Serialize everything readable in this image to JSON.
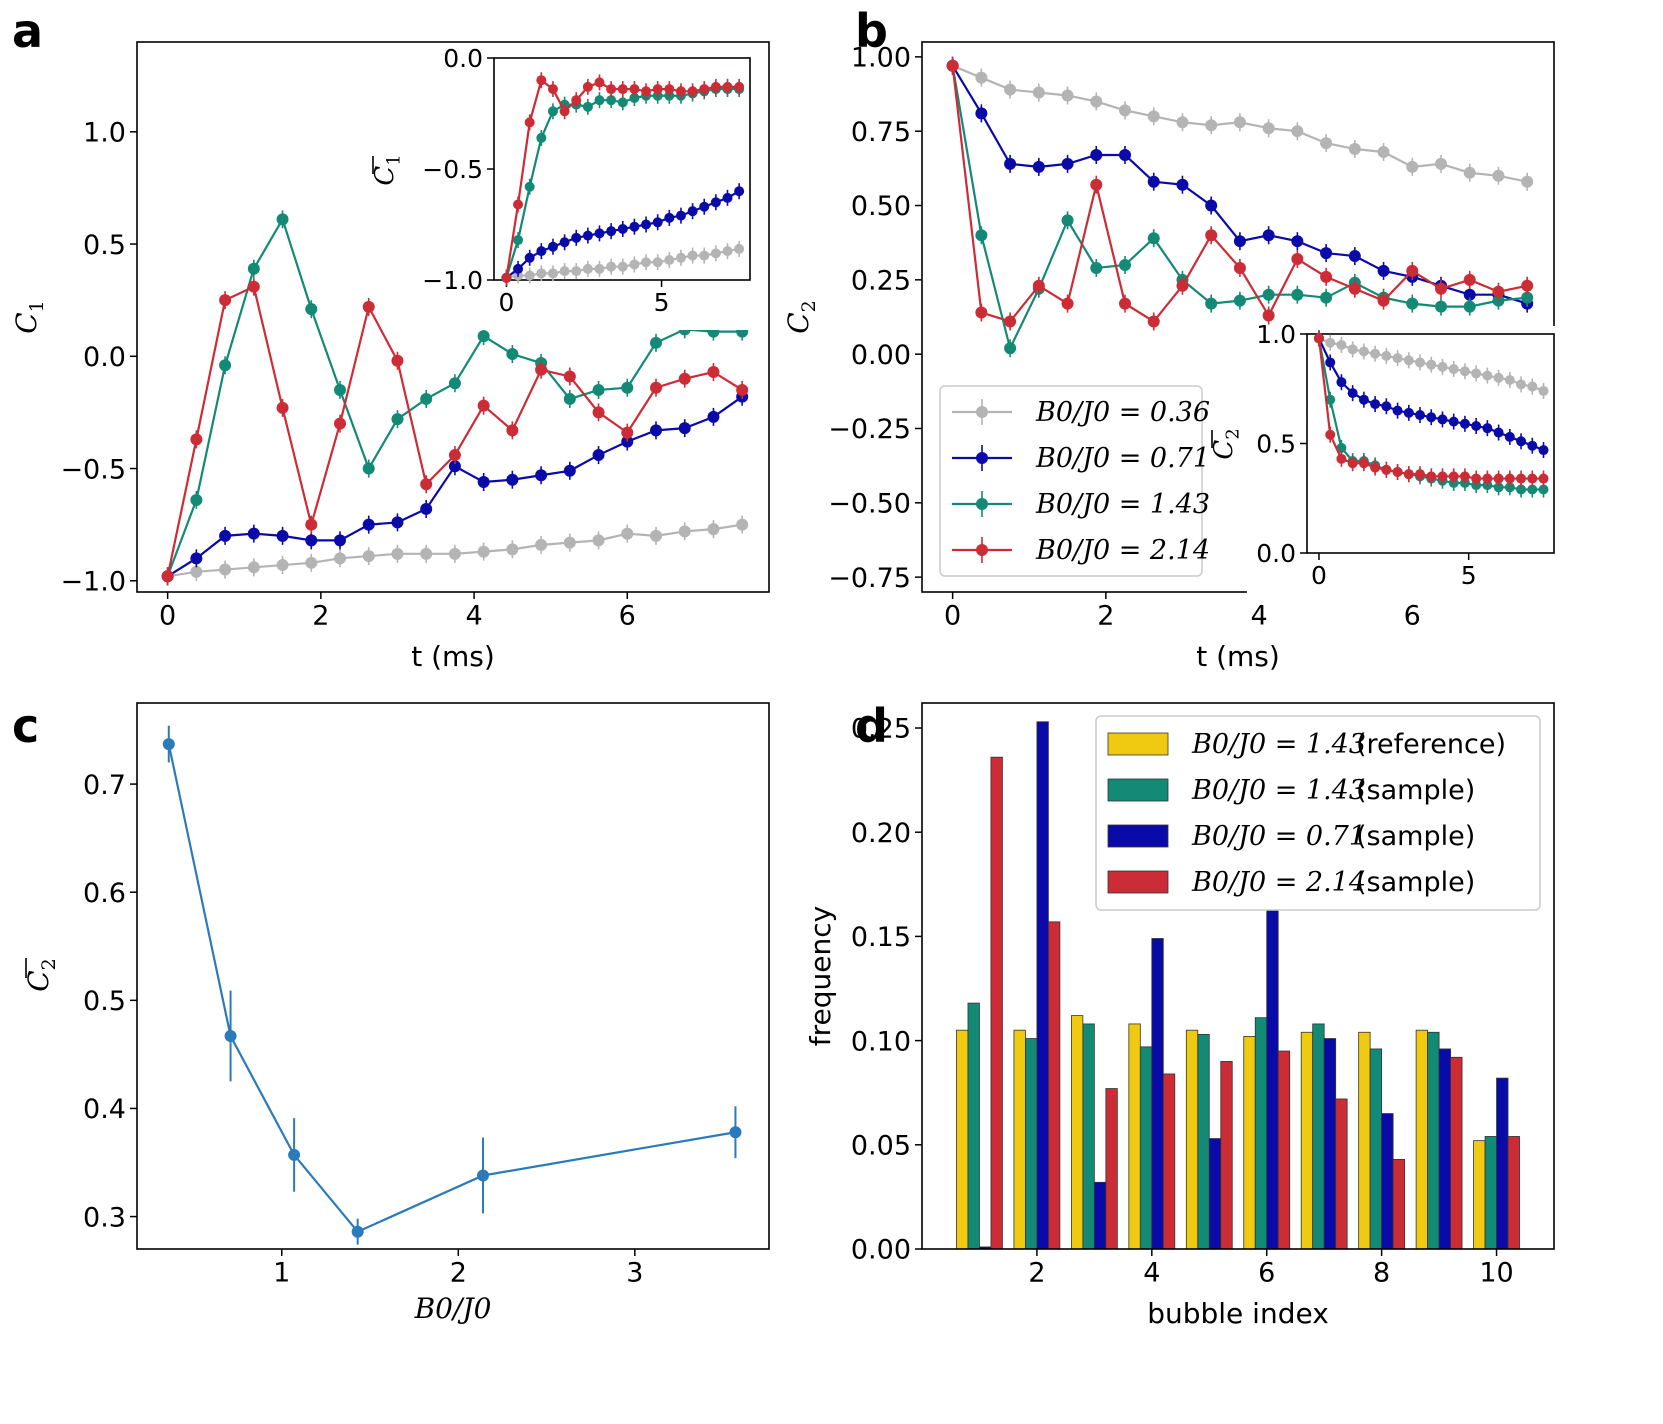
{
  "colors": {
    "gray": "#b4b4b4",
    "blue": "#0a0aa8",
    "teal": "#138a76",
    "red": "#cc2c36",
    "yellow": "#f0ca10",
    "steelblue": "#2b7bba"
  },
  "chart_data": [
    {
      "panel": "a",
      "type": "line",
      "title": "",
      "xlabel": "t (ms)",
      "ylabel": "C1",
      "xlim": [
        -0.4,
        7.85
      ],
      "ylim": [
        -1.05,
        1.4
      ],
      "xticks": [
        0,
        2,
        4,
        6
      ],
      "yticks": [
        -1.0,
        -0.5,
        0.0,
        0.5,
        1.0
      ],
      "xticklabels": [
        "0",
        "2",
        "4",
        "6"
      ],
      "yticklabels": [
        "−1.0",
        "−0.5",
        "0.0",
        "0.5",
        "1.0"
      ],
      "x": [
        0,
        0.375,
        0.75,
        1.125,
        1.5,
        1.875,
        2.25,
        2.625,
        3.0,
        3.375,
        3.75,
        4.125,
        4.5,
        4.875,
        5.25,
        5.625,
        6.0,
        6.375,
        6.75,
        7.125,
        7.5
      ],
      "series": [
        {
          "name": "B0/J0=0.36",
          "color": "gray",
          "values": [
            -0.98,
            -0.96,
            -0.95,
            -0.94,
            -0.93,
            -0.92,
            -0.9,
            -0.89,
            -0.88,
            -0.88,
            -0.88,
            -0.87,
            -0.86,
            -0.84,
            -0.83,
            -0.82,
            -0.79,
            -0.8,
            -0.78,
            -0.77,
            -0.75
          ]
        },
        {
          "name": "B0/J0=0.71",
          "color": "blue",
          "values": [
            -0.98,
            -0.9,
            -0.8,
            -0.79,
            -0.8,
            -0.82,
            -0.82,
            -0.75,
            -0.74,
            -0.68,
            -0.49,
            -0.56,
            -0.55,
            -0.53,
            -0.51,
            -0.44,
            -0.38,
            -0.33,
            -0.32,
            -0.27,
            -0.18
          ]
        },
        {
          "name": "B0/J0=1.43",
          "color": "teal",
          "values": [
            -0.98,
            -0.64,
            -0.04,
            0.39,
            0.61,
            0.21,
            -0.15,
            -0.5,
            -0.28,
            -0.19,
            -0.12,
            0.09,
            0.01,
            -0.03,
            -0.19,
            -0.15,
            -0.14,
            0.06,
            0.12,
            0.11,
            0.11
          ]
        },
        {
          "name": "B0/J0=2.14",
          "color": "red",
          "values": [
            -0.98,
            -0.37,
            0.25,
            0.31,
            -0.23,
            -0.75,
            -0.3,
            0.22,
            -0.02,
            -0.57,
            -0.44,
            -0.22,
            -0.33,
            -0.06,
            -0.09,
            -0.25,
            -0.34,
            -0.14,
            -0.1,
            -0.07,
            -0.15
          ]
        }
      ],
      "inset": {
        "ylabel": "C̄1",
        "xlim": [
          -0.4,
          7.85
        ],
        "ylim": [
          -1.0,
          0.0
        ],
        "xticks": [
          0,
          5
        ],
        "xticklabels": [
          "0",
          "5"
        ],
        "yticks": [
          -1.0,
          -0.5,
          0.0
        ],
        "yticklabels": [
          "−1.0",
          "−0.5",
          "0.0"
        ],
        "series": [
          {
            "color": "gray",
            "values": [
              -0.99,
              -0.98,
              -0.98,
              -0.97,
              -0.97,
              -0.96,
              -0.96,
              -0.95,
              -0.95,
              -0.94,
              -0.94,
              -0.93,
              -0.92,
              -0.92,
              -0.91,
              -0.9,
              -0.89,
              -0.89,
              -0.88,
              -0.87,
              -0.86
            ]
          },
          {
            "color": "blue",
            "values": [
              -0.99,
              -0.95,
              -0.9,
              -0.87,
              -0.85,
              -0.83,
              -0.81,
              -0.8,
              -0.79,
              -0.78,
              -0.77,
              -0.76,
              -0.75,
              -0.74,
              -0.72,
              -0.71,
              -0.69,
              -0.67,
              -0.65,
              -0.63,
              -0.6
            ]
          },
          {
            "color": "teal",
            "values": [
              -0.99,
              -0.82,
              -0.58,
              -0.36,
              -0.24,
              -0.21,
              -0.21,
              -0.22,
              -0.19,
              -0.19,
              -0.2,
              -0.18,
              -0.17,
              -0.17,
              -0.17,
              -0.17,
              -0.16,
              -0.15,
              -0.14,
              -0.14,
              -0.14
            ]
          },
          {
            "color": "red",
            "values": [
              -0.99,
              -0.66,
              -0.29,
              -0.1,
              -0.14,
              -0.24,
              -0.19,
              -0.13,
              -0.11,
              -0.14,
              -0.14,
              -0.14,
              -0.15,
              -0.14,
              -0.14,
              -0.15,
              -0.15,
              -0.14,
              -0.13,
              -0.13,
              -0.13
            ]
          }
        ]
      }
    },
    {
      "panel": "b",
      "type": "line",
      "xlabel": "t (ms)",
      "ylabel": "C2",
      "xlim": [
        -0.4,
        7.85
      ],
      "ylim": [
        -0.8,
        1.05
      ],
      "xticks": [
        0,
        2,
        4,
        6
      ],
      "xticklabels": [
        "0",
        "2",
        "4",
        "6"
      ],
      "yticks": [
        -0.75,
        -0.5,
        -0.25,
        0.0,
        0.25,
        0.5,
        0.75,
        1.0
      ],
      "yticklabels": [
        "−0.75",
        "−0.50",
        "−0.25",
        "0.00",
        "0.25",
        "0.50",
        "0.75",
        "1.00"
      ],
      "x": [
        0,
        0.375,
        0.75,
        1.125,
        1.5,
        1.875,
        2.25,
        2.625,
        3.0,
        3.375,
        3.75,
        4.125,
        4.5,
        4.875,
        5.25,
        5.625,
        6.0,
        6.375,
        6.75,
        7.125,
        7.5
      ],
      "legend": [
        {
          "label": "B0/J0 = 0.36",
          "color": "gray"
        },
        {
          "label": "B0/J0 = 0.71",
          "color": "blue"
        },
        {
          "label": "B0/J0 = 1.43",
          "color": "teal"
        },
        {
          "label": "B0/J0 = 2.14",
          "color": "red"
        }
      ],
      "series": [
        {
          "name": "B0/J0=0.36",
          "color": "gray",
          "values": [
            0.97,
            0.93,
            0.89,
            0.88,
            0.87,
            0.85,
            0.82,
            0.8,
            0.78,
            0.77,
            0.78,
            0.76,
            0.75,
            0.71,
            0.69,
            0.68,
            0.63,
            0.64,
            0.61,
            0.6,
            0.58
          ]
        },
        {
          "name": "B0/J0=0.71",
          "color": "blue",
          "values": [
            0.97,
            0.81,
            0.64,
            0.63,
            0.64,
            0.67,
            0.67,
            0.58,
            0.57,
            0.5,
            0.38,
            0.4,
            0.38,
            0.34,
            0.33,
            0.28,
            0.26,
            0.23,
            0.2,
            0.2,
            0.17
          ]
        },
        {
          "name": "B0/J0=1.43",
          "color": "teal",
          "values": [
            0.97,
            0.4,
            0.02,
            0.22,
            0.45,
            0.29,
            0.3,
            0.39,
            0.25,
            0.17,
            0.18,
            0.2,
            0.2,
            0.19,
            0.24,
            0.19,
            0.17,
            0.16,
            0.16,
            0.18,
            0.19
          ]
        },
        {
          "name": "B0/J0=2.14",
          "color": "red",
          "values": [
            0.97,
            0.14,
            0.11,
            0.23,
            0.17,
            0.57,
            0.17,
            0.11,
            0.23,
            0.4,
            0.29,
            0.13,
            0.32,
            0.26,
            0.22,
            0.18,
            0.28,
            0.22,
            0.25,
            0.21,
            0.23
          ]
        }
      ],
      "inset": {
        "ylabel": "C̄2",
        "xlim": [
          -0.4,
          7.85
        ],
        "ylim": [
          0.0,
          1.0
        ],
        "xticks": [
          0,
          5
        ],
        "xticklabels": [
          "0",
          "5"
        ],
        "yticks": [
          0.0,
          0.5,
          1.0
        ],
        "yticklabels": [
          "0.0",
          "0.5",
          "1.0"
        ],
        "series": [
          {
            "color": "gray",
            "values": [
              0.98,
              0.96,
              0.95,
              0.93,
              0.92,
              0.91,
              0.9,
              0.89,
              0.88,
              0.87,
              0.86,
              0.85,
              0.84,
              0.83,
              0.82,
              0.81,
              0.8,
              0.79,
              0.77,
              0.76,
              0.74
            ]
          },
          {
            "color": "blue",
            "values": [
              0.98,
              0.87,
              0.78,
              0.73,
              0.7,
              0.68,
              0.67,
              0.65,
              0.64,
              0.63,
              0.62,
              0.61,
              0.6,
              0.59,
              0.58,
              0.57,
              0.55,
              0.53,
              0.51,
              0.49,
              0.47
            ]
          },
          {
            "color": "teal",
            "values": [
              0.98,
              0.7,
              0.48,
              0.42,
              0.42,
              0.4,
              0.38,
              0.37,
              0.36,
              0.35,
              0.34,
              0.33,
              0.32,
              0.32,
              0.31,
              0.31,
              0.3,
              0.3,
              0.29,
              0.29,
              0.29
            ]
          },
          {
            "color": "red",
            "values": [
              0.98,
              0.54,
              0.43,
              0.41,
              0.41,
              0.39,
              0.38,
              0.37,
              0.36,
              0.36,
              0.35,
              0.35,
              0.35,
              0.35,
              0.34,
              0.34,
              0.34,
              0.34,
              0.34,
              0.34,
              0.34
            ]
          }
        ]
      }
    },
    {
      "panel": "c",
      "type": "line",
      "xlabel": "B0/J0",
      "ylabel": "C̄2",
      "xlim": [
        0.18,
        3.76
      ],
      "ylim": [
        0.27,
        0.775
      ],
      "xticks": [
        1,
        2,
        3
      ],
      "xticklabels": [
        "1",
        "2",
        "3"
      ],
      "yticks": [
        0.3,
        0.4,
        0.5,
        0.6,
        0.7
      ],
      "yticklabels": [
        "0.3",
        "0.4",
        "0.5",
        "0.6",
        "0.7"
      ],
      "x": [
        0.36,
        0.71,
        1.07,
        1.43,
        2.14,
        3.57
      ],
      "values": [
        0.737,
        0.467,
        0.357,
        0.286,
        0.338,
        0.378
      ],
      "errors": [
        0.017,
        0.042,
        0.034,
        0.012,
        0.035,
        0.024
      ],
      "color": "steelblue"
    },
    {
      "panel": "d",
      "type": "bar",
      "xlabel": "bubble index",
      "ylabel": "frequency",
      "xlim": [
        0.0,
        11.0
      ],
      "ylim": [
        0.0,
        0.262
      ],
      "xticks": [
        2,
        4,
        6,
        8,
        10
      ],
      "xticklabels": [
        "2",
        "4",
        "6",
        "8",
        "10"
      ],
      "yticks": [
        0.0,
        0.05,
        0.1,
        0.15,
        0.2,
        0.25
      ],
      "yticklabels": [
        "0.00",
        "0.05",
        "0.10",
        "0.15",
        "0.20",
        "0.25"
      ],
      "categories": [
        1,
        2,
        3,
        4,
        5,
        6,
        7,
        8,
        9,
        10
      ],
      "legend": [
        {
          "label": "B0/J0 = 1.43",
          "suffix": "(reference)",
          "color": "yellow"
        },
        {
          "label": "B0/J0 = 1.43",
          "suffix": "(sample)",
          "color": "teal"
        },
        {
          "label": "B0/J0 = 0.71",
          "suffix": "(sample)",
          "color": "blue"
        },
        {
          "label": "B0/J0 = 2.14",
          "suffix": "(sample)",
          "color": "red"
        }
      ],
      "series": [
        {
          "name": "B0/J0=1.43 (reference)",
          "color": "yellow",
          "values": [
            0.105,
            0.105,
            0.112,
            0.108,
            0.105,
            0.102,
            0.104,
            0.104,
            0.105,
            0.052
          ]
        },
        {
          "name": "B0/J0=1.43 (sample)",
          "color": "teal",
          "values": [
            0.118,
            0.101,
            0.108,
            0.097,
            0.103,
            0.111,
            0.108,
            0.096,
            0.104,
            0.054
          ]
        },
        {
          "name": "B0/J0=0.71 (sample)",
          "color": "blue",
          "values": [
            0.001,
            0.253,
            0.032,
            0.149,
            0.053,
            0.168,
            0.101,
            0.065,
            0.096,
            0.082
          ]
        },
        {
          "name": "B0/J0=2.14 (sample)",
          "color": "red",
          "values": [
            0.236,
            0.157,
            0.077,
            0.084,
            0.09,
            0.095,
            0.072,
            0.043,
            0.092,
            0.054
          ]
        }
      ]
    }
  ],
  "panel_letters": [
    "a",
    "b",
    "c",
    "d"
  ]
}
